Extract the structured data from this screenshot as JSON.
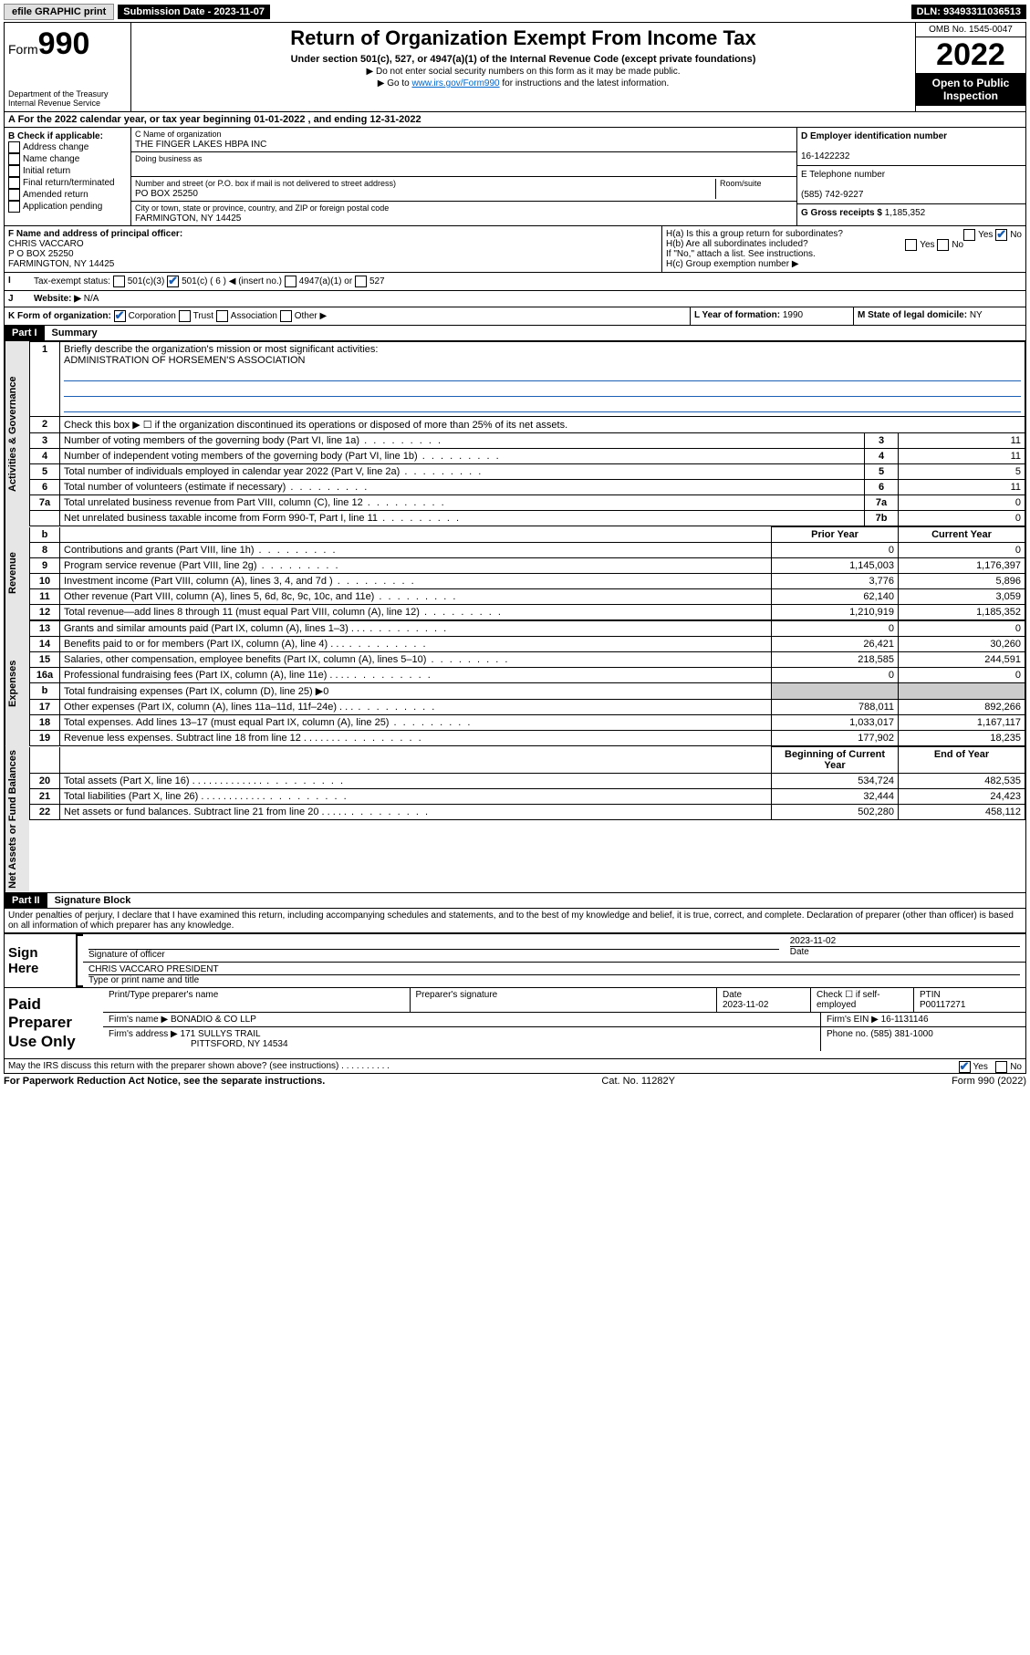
{
  "top_bar": {
    "efile": "efile GRAPHIC print",
    "submission_label": "Submission Date - 2023-11-07",
    "dln_label": "DLN: 93493311036513"
  },
  "header": {
    "form_label": "Form",
    "form_no": "990",
    "dept": "Department of the Treasury\nInternal Revenue Service",
    "title": "Return of Organization Exempt From Income Tax",
    "sub": "Under section 501(c), 527, or 4947(a)(1) of the Internal Revenue Code (except private foundations)",
    "note1": "▶ Do not enter social security numbers on this form as it may be made public.",
    "note2_pre": "▶ Go to ",
    "note2_link": "www.irs.gov/Form990",
    "note2_post": " for instructions and the latest information.",
    "omb": "OMB No. 1545-0047",
    "year": "2022",
    "open": "Open to Public Inspection"
  },
  "tax_year": "A For the 2022 calendar year, or tax year beginning 01-01-2022   , and ending 12-31-2022",
  "box_b": {
    "label": "B Check if applicable:",
    "opts": [
      "Address change",
      "Name change",
      "Initial return",
      "Final return/terminated",
      "Amended return",
      "Application pending"
    ]
  },
  "box_c": {
    "name_label": "C Name of organization",
    "name": "THE FINGER LAKES HBPA INC",
    "dba_label": "Doing business as",
    "addr_label": "Number and street (or P.O. box if mail is not delivered to street address)",
    "room_label": "Room/suite",
    "addr": "PO BOX 25250",
    "city_label": "City or town, state or province, country, and ZIP or foreign postal code",
    "city": "FARMINGTON, NY  14425"
  },
  "box_d": {
    "label": "D Employer identification number",
    "val": "16-1422232"
  },
  "box_e": {
    "label": "E Telephone number",
    "val": "(585) 742-9227"
  },
  "box_g": {
    "label": "G Gross receipts $",
    "val": "1,185,352"
  },
  "box_f": {
    "label": "F Name and address of principal officer:",
    "name": "CHRIS VACCARO",
    "addr1": "P O BOX 25250",
    "addr2": "FARMINGTON, NY  14425"
  },
  "box_h": {
    "a": "H(a)  Is this a group return for subordinates?",
    "b": "H(b)  Are all subordinates included?",
    "b_note": "If \"No,\" attach a list. See instructions.",
    "c": "H(c)  Group exemption number ▶"
  },
  "box_i": {
    "label": "Tax-exempt status:",
    "o1": "501(c)(3)",
    "o2": "501(c) ( 6 ) ◀ (insert no.)",
    "o3": "4947(a)(1) or",
    "o4": "527"
  },
  "box_j": {
    "label": "Website: ▶",
    "val": "N/A"
  },
  "box_k": {
    "label": "K Form of organization:",
    "opts": [
      "Corporation",
      "Trust",
      "Association",
      "Other ▶"
    ]
  },
  "box_l": {
    "label": "L Year of formation:",
    "val": "1990"
  },
  "box_m": {
    "label": "M State of legal domicile:",
    "val": "NY"
  },
  "part1": {
    "tag": "Part I",
    "title": "Summary"
  },
  "mission_q": "Briefly describe the organization's mission or most significant activities:",
  "mission": "ADMINISTRATION OF HORSEMEN'S ASSOCIATION",
  "line2": "Check this box ▶ ☐  if the organization discontinued its operations or disposed of more than 25% of its net assets.",
  "lines_gov": [
    {
      "n": "3",
      "d": "Number of voting members of the governing body (Part VI, line 1a)",
      "r": "3",
      "v": "11"
    },
    {
      "n": "4",
      "d": "Number of independent voting members of the governing body (Part VI, line 1b)",
      "r": "4",
      "v": "11"
    },
    {
      "n": "5",
      "d": "Total number of individuals employed in calendar year 2022 (Part V, line 2a)",
      "r": "5",
      "v": "5"
    },
    {
      "n": "6",
      "d": "Total number of volunteers (estimate if necessary)",
      "r": "6",
      "v": "11"
    },
    {
      "n": "7a",
      "d": "Total unrelated business revenue from Part VIII, column (C), line 12",
      "r": "7a",
      "v": "0"
    },
    {
      "n": "",
      "d": "Net unrelated business taxable income from Form 990-T, Part I, line 11",
      "r": "7b",
      "v": "0"
    }
  ],
  "col_headers": {
    "prior": "Prior Year",
    "current": "Current Year"
  },
  "lines_rev": [
    {
      "n": "8",
      "d": "Contributions and grants (Part VIII, line 1h)",
      "p": "0",
      "c": "0"
    },
    {
      "n": "9",
      "d": "Program service revenue (Part VIII, line 2g)",
      "p": "1,145,003",
      "c": "1,176,397"
    },
    {
      "n": "10",
      "d": "Investment income (Part VIII, column (A), lines 3, 4, and 7d )",
      "p": "3,776",
      "c": "5,896"
    },
    {
      "n": "11",
      "d": "Other revenue (Part VIII, column (A), lines 5, 6d, 8c, 9c, 10c, and 11e)",
      "p": "62,140",
      "c": "3,059"
    },
    {
      "n": "12",
      "d": "Total revenue—add lines 8 through 11 (must equal Part VIII, column (A), line 12)",
      "p": "1,210,919",
      "c": "1,185,352"
    }
  ],
  "lines_exp": [
    {
      "n": "13",
      "d": "Grants and similar amounts paid (Part IX, column (A), lines 1–3)   .   .   .",
      "p": "0",
      "c": "0"
    },
    {
      "n": "14",
      "d": "Benefits paid to or for members (Part IX, column (A), line 4)   .   .   .",
      "p": "26,421",
      "c": "30,260"
    },
    {
      "n": "15",
      "d": "Salaries, other compensation, employee benefits (Part IX, column (A), lines 5–10)",
      "p": "218,585",
      "c": "244,591"
    },
    {
      "n": "16a",
      "d": "Professional fundraising fees (Part IX, column (A), line 11e)   .   .   .   .",
      "p": "0",
      "c": "0"
    },
    {
      "n": "b",
      "d": "Total fundraising expenses (Part IX, column (D), line 25) ▶0",
      "p": "",
      "c": "",
      "grey": true
    },
    {
      "n": "17",
      "d": "Other expenses (Part IX, column (A), lines 11a–11d, 11f–24e)   .   .   .",
      "p": "788,011",
      "c": "892,266"
    },
    {
      "n": "18",
      "d": "Total expenses. Add lines 13–17 (must equal Part IX, column (A), line 25)",
      "p": "1,033,017",
      "c": "1,167,117"
    },
    {
      "n": "19",
      "d": "Revenue less expenses. Subtract line 18 from line 12   .   .   .   .   .   .   .",
      "p": "177,902",
      "c": "18,235"
    }
  ],
  "col_headers2": {
    "begin": "Beginning of Current Year",
    "end": "End of Year"
  },
  "lines_net": [
    {
      "n": "20",
      "d": "Total assets (Part X, line 16)   .   .   .   .   .   .   .   .   .   .   .   .   .",
      "p": "534,724",
      "c": "482,535"
    },
    {
      "n": "21",
      "d": "Total liabilities (Part X, line 26)   .   .   .   .   .   .   .   .   .   .   .   .",
      "p": "32,444",
      "c": "24,423"
    },
    {
      "n": "22",
      "d": "Net assets or fund balances. Subtract line 21 from line 20   .   .   .   .   .",
      "p": "502,280",
      "c": "458,112"
    }
  ],
  "vert": {
    "gov": "Activities & Governance",
    "rev": "Revenue",
    "exp": "Expenses",
    "net": "Net Assets or Fund Balances"
  },
  "part2": {
    "tag": "Part II",
    "title": "Signature Block"
  },
  "penalties": "Under penalties of perjury, I declare that I have examined this return, including accompanying schedules and statements, and to the best of my knowledge and belief, it is true, correct, and complete. Declaration of preparer (other than officer) is based on all information of which preparer has any knowledge.",
  "sign": {
    "here": "Sign Here",
    "sig_label": "Signature of officer",
    "date_label": "Date",
    "date": "2023-11-02",
    "name": "CHRIS VACCARO  PRESIDENT",
    "name_label": "Type or print name and title"
  },
  "paid": {
    "label": "Paid Preparer Use Only",
    "h1": "Print/Type preparer's name",
    "h2": "Preparer's signature",
    "h3": "Date",
    "date": "2023-11-02",
    "h4": "Check ☐ if self-employed",
    "h5": "PTIN",
    "ptin": "P00117271",
    "firm_name_l": "Firm's name    ▶",
    "firm_name": "BONADIO & CO LLP",
    "firm_ein_l": "Firm's EIN ▶",
    "firm_ein": "16-1131146",
    "firm_addr_l": "Firm's address ▶",
    "firm_addr1": "171 SULLYS TRAIL",
    "firm_addr2": "PITTSFORD, NY  14534",
    "phone_l": "Phone no.",
    "phone": "(585) 381-1000"
  },
  "discuss": "May the IRS discuss this return with the preparer shown above? (see instructions)   .   .   .   .   .   .   .   .   .   .",
  "footer": {
    "left": "For Paperwork Reduction Act Notice, see the separate instructions.",
    "mid": "Cat. No. 11282Y",
    "right": "Form 990 (2022)"
  }
}
